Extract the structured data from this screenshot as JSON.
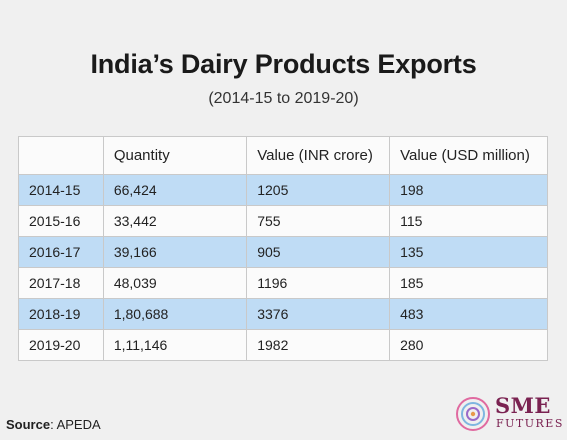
{
  "chart_data": {
    "type": "table",
    "title": "India’s Dairy Products Exports",
    "subtitle": "(2014-15 to 2019-20)",
    "columns": [
      "",
      "Quantity",
      "Value (INR crore)",
      "Value (USD million)"
    ],
    "rows": [
      [
        "2014-15",
        "66,424",
        "1205",
        "198"
      ],
      [
        "2015-16",
        "33,442",
        "755",
        "115"
      ],
      [
        "2016-17",
        "39,166",
        "905",
        "135"
      ],
      [
        "2017-18",
        "48,039",
        "1196",
        "185"
      ],
      [
        "2018-19",
        "1,80,688",
        "3376",
        "483"
      ],
      [
        "2019-20",
        "1,11,146",
        "1982",
        "280"
      ]
    ],
    "highlight_rows": [
      0,
      2,
      4
    ],
    "highlight_color": "#bfdcf5"
  },
  "source": {
    "label": "Source",
    "value": ": APEDA"
  },
  "logo": {
    "top": "SME",
    "bottom": "FUTURES",
    "color": "#7a2251"
  }
}
